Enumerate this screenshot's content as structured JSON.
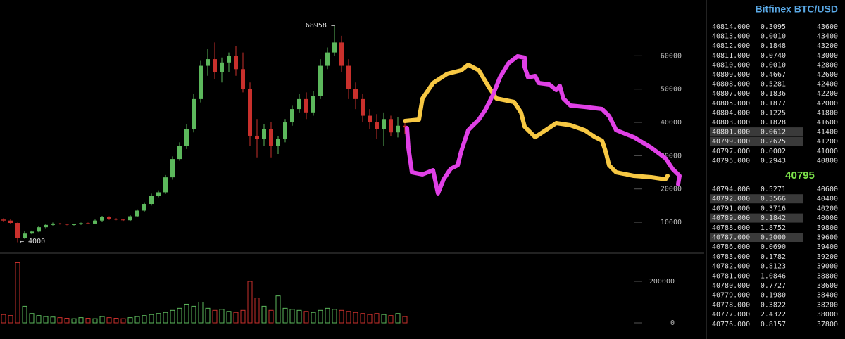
{
  "chart_data": {
    "type": "candlestick",
    "open": [
      10800,
      10500,
      9800,
      5200,
      6800,
      7200,
      8500,
      9200,
      9600,
      9500,
      9300,
      9400,
      9700,
      9600,
      10500,
      11500,
      11000,
      10800,
      10600,
      11800,
      13500,
      15500,
      18000,
      19000,
      23500,
      29000,
      33000,
      38000,
      47000,
      57000,
      59000,
      55000,
      58000,
      60000,
      56000,
      50000,
      36000,
      35000,
      38000,
      33000,
      35000,
      40000,
      44000,
      47000,
      43000,
      48000,
      57000,
      61000,
      64000,
      57000,
      50000,
      47000,
      42000,
      40000,
      38000,
      41000,
      37000,
      39000
    ],
    "high": [
      11200,
      10900,
      9900,
      7300,
      7500,
      8800,
      9500,
      9900,
      9800,
      9600,
      9600,
      9900,
      9900,
      10800,
      11900,
      11800,
      11200,
      11000,
      12100,
      13900,
      16000,
      18600,
      19600,
      24200,
      29800,
      34000,
      39500,
      48500,
      58500,
      62000,
      64000,
      59500,
      61000,
      63000,
      61000,
      52000,
      41000,
      39500,
      40000,
      36000,
      41000,
      45000,
      48500,
      49000,
      49500,
      59000,
      62500,
      68958,
      66000,
      59000,
      52000,
      48500,
      44000,
      42500,
      43000,
      42000,
      41500,
      40500
    ],
    "low": [
      10100,
      9500,
      4000,
      5000,
      6400,
      7000,
      8200,
      9000,
      9300,
      9100,
      9000,
      9200,
      9400,
      9400,
      10200,
      10700,
      10600,
      10400,
      10400,
      11500,
      13200,
      15000,
      17500,
      18500,
      22800,
      28500,
      32000,
      37000,
      46000,
      54000,
      53000,
      52000,
      55000,
      54000,
      49000,
      33000,
      29500,
      33000,
      29500,
      30500,
      34000,
      39000,
      43000,
      41000,
      42000,
      47000,
      56000,
      60000,
      55000,
      47000,
      44000,
      40000,
      38000,
      35000,
      33000,
      36000,
      35500,
      36500
    ],
    "close": [
      10500,
      9800,
      5200,
      6800,
      7200,
      8500,
      9200,
      9600,
      9500,
      9300,
      9400,
      9700,
      9600,
      10500,
      11500,
      11000,
      10800,
      10600,
      11800,
      13500,
      15500,
      18000,
      19000,
      23500,
      29000,
      33000,
      38000,
      47000,
      57000,
      59000,
      55000,
      58000,
      60000,
      56000,
      50000,
      36000,
      35000,
      38000,
      33000,
      35000,
      40000,
      44000,
      47000,
      43000,
      48000,
      57000,
      61000,
      64000,
      57000,
      50000,
      47000,
      42000,
      40000,
      38000,
      41000,
      37000,
      39000,
      38500
    ],
    "volume": [
      40000,
      35000,
      290000,
      80000,
      45000,
      35000,
      30000,
      28000,
      25000,
      22000,
      20000,
      25000,
      22000,
      20000,
      30000,
      25000,
      22000,
      20000,
      25000,
      30000,
      35000,
      40000,
      45000,
      50000,
      60000,
      70000,
      90000,
      80000,
      100000,
      70000,
      60000,
      65000,
      55000,
      50000,
      60000,
      200000,
      120000,
      80000,
      60000,
      130000,
      70000,
      65000,
      60000,
      55000,
      50000,
      60000,
      70000,
      65000,
      60000,
      55000,
      50000,
      45000,
      40000,
      45000,
      40000,
      35000,
      45000,
      30000
    ],
    "up_color": "#5cb85c",
    "down_color": "#c9302c",
    "ylim": [
      0,
      70000
    ],
    "yticks": [
      10000,
      20000,
      30000,
      40000,
      50000,
      60000
    ],
    "volume_ylim": [
      0,
      320000
    ],
    "volume_yticks": [
      0,
      200000
    ],
    "annotations": [
      {
        "text": "68958 →"
      },
      {
        "text": "← 4000"
      }
    ]
  },
  "order_book": {
    "title": "Bitfinex BTC/USD",
    "last_price": "40795",
    "asks": [
      {
        "price": "40814.000",
        "amount": "0.3095",
        "level": 43600,
        "highlight": false
      },
      {
        "price": "40813.000",
        "amount": "0.0010",
        "level": 43400,
        "highlight": false
      },
      {
        "price": "40812.000",
        "amount": "0.1848",
        "level": 43200,
        "highlight": false
      },
      {
        "price": "40811.000",
        "amount": "0.0740",
        "level": 43000,
        "highlight": false
      },
      {
        "price": "40810.000",
        "amount": "0.0010",
        "level": 42800,
        "highlight": false
      },
      {
        "price": "40809.000",
        "amount": "0.4667",
        "level": 42600,
        "highlight": false
      },
      {
        "price": "40808.000",
        "amount": "0.5281",
        "level": 42400,
        "highlight": false
      },
      {
        "price": "40807.000",
        "amount": "0.1836",
        "level": 42200,
        "highlight": false
      },
      {
        "price": "40805.000",
        "amount": "0.1877",
        "level": 42000,
        "highlight": false
      },
      {
        "price": "40804.000",
        "amount": "0.1225",
        "level": 41800,
        "highlight": false
      },
      {
        "price": "40803.000",
        "amount": "0.1828",
        "level": 41600,
        "highlight": false
      },
      {
        "price": "40801.000",
        "amount": "0.0612",
        "level": 41400,
        "highlight": true
      },
      {
        "price": "40799.000",
        "amount": "0.2625",
        "level": 41200,
        "highlight": true
      },
      {
        "price": "40797.000",
        "amount": "0.0002",
        "level": 41000,
        "highlight": false
      },
      {
        "price": "40795.000",
        "amount": "0.2943",
        "level": 40800,
        "highlight": false
      }
    ],
    "bids": [
      {
        "price": "40794.000",
        "amount": "0.5271",
        "level": 40600,
        "highlight": false
      },
      {
        "price": "40792.000",
        "amount": "0.3566",
        "level": 40400,
        "highlight": true
      },
      {
        "price": "40791.000",
        "amount": "0.3716",
        "level": 40200,
        "highlight": false
      },
      {
        "price": "40789.000",
        "amount": "0.1842",
        "level": 40000,
        "highlight": true
      },
      {
        "price": "40788.000",
        "amount": "1.8752",
        "level": 39800,
        "highlight": false
      },
      {
        "price": "40787.000",
        "amount": "0.2000",
        "level": 39600,
        "highlight": true
      },
      {
        "price": "40786.000",
        "amount": "0.0690",
        "level": 39400,
        "highlight": false
      },
      {
        "price": "40783.000",
        "amount": "0.1782",
        "level": 39200,
        "highlight": false
      },
      {
        "price": "40782.000",
        "amount": "0.8123",
        "level": 39000,
        "highlight": false
      },
      {
        "price": "40781.000",
        "amount": "1.0846",
        "level": 38800,
        "highlight": false
      },
      {
        "price": "40780.000",
        "amount": "0.7727",
        "level": 38600,
        "highlight": false
      },
      {
        "price": "40779.000",
        "amount": "0.1980",
        "level": 38400,
        "highlight": false
      },
      {
        "price": "40778.000",
        "amount": "0.3822",
        "level": 38200,
        "highlight": false
      },
      {
        "price": "40777.000",
        "amount": "2.4322",
        "level": 38000,
        "highlight": false
      },
      {
        "price": "40776.000",
        "amount": "0.8157",
        "level": 37800,
        "highlight": false
      }
    ]
  }
}
